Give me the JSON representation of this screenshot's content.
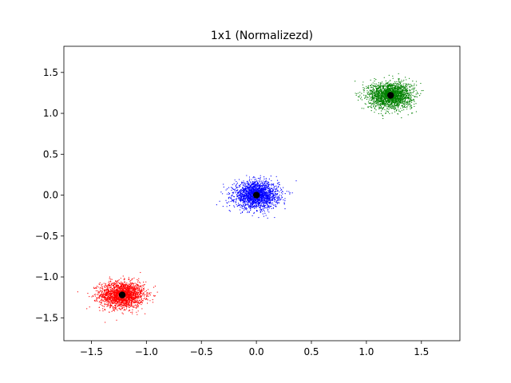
{
  "chart_data": {
    "type": "scatter",
    "title": "1x1 (Normalizezd)",
    "xlabel": "",
    "ylabel": "",
    "xlim": [
      -1.75,
      1.85
    ],
    "ylim": [
      -1.78,
      1.82
    ],
    "xticks": [
      -1.5,
      -1.0,
      -0.5,
      0.0,
      0.5,
      1.0,
      1.5
    ],
    "xtick_labels": [
      "−1.5",
      "−1.0",
      "−0.5",
      "0.0",
      "0.5",
      "1.0",
      "1.5"
    ],
    "yticks": [
      -1.5,
      -1.0,
      -0.5,
      0.0,
      0.5,
      1.0,
      1.5
    ],
    "ytick_labels": [
      "−1.5",
      "−1.0",
      "−0.5",
      "0.0",
      "0.5",
      "1.0",
      "1.5"
    ],
    "grid": false,
    "legend": false,
    "clusters": [
      {
        "color": "#ff0000",
        "center": [
          -1.22,
          -1.22
        ],
        "spread": [
          0.1,
          0.08
        ],
        "count": 2000
      },
      {
        "color": "#0000ff",
        "center": [
          0.0,
          0.0
        ],
        "spread": [
          0.1,
          0.08
        ],
        "count": 2000
      },
      {
        "color": "#008000",
        "center": [
          1.22,
          1.22
        ],
        "spread": [
          0.1,
          0.08
        ],
        "count": 2000
      }
    ],
    "centroids": {
      "color": "#000000",
      "points": [
        [
          -1.22,
          -1.22
        ],
        [
          0.0,
          0.0
        ],
        [
          1.22,
          1.22
        ]
      ]
    }
  }
}
